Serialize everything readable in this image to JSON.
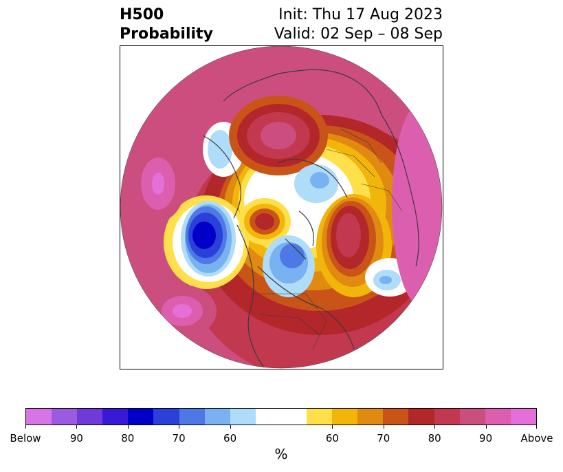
{
  "header": {
    "title_line1": "H500",
    "title_line2": "Probability",
    "init_text": "Init: Thu 17 Aug 2023",
    "valid_text": "Valid: 02 Sep – 08 Sep"
  },
  "map": {
    "projection": "north-polar-stereographic",
    "variable": "500 hPa height probability",
    "background_color": "#ffffff",
    "coastline_color": "#3a3a3a"
  },
  "colorbar": {
    "unit_label": "%",
    "below_colors": [
      "#d774e6",
      "#9b5be0",
      "#6f3ad9",
      "#3a19d6",
      "#0000c8",
      "#2b3fd9",
      "#4d78e6",
      "#78b2f0",
      "#afdcf8"
    ],
    "neutral_color": "#ffffff",
    "above_colors": [
      "#ffe04a",
      "#f2b60a",
      "#e08a12",
      "#c95418",
      "#b3262a",
      "#c2394f",
      "#cc4e7e",
      "#db5fae",
      "#e56fd8"
    ],
    "tick_labels": [
      "Below",
      "90",
      "80",
      "70",
      "60",
      "60",
      "70",
      "80",
      "90",
      "Above"
    ]
  }
}
